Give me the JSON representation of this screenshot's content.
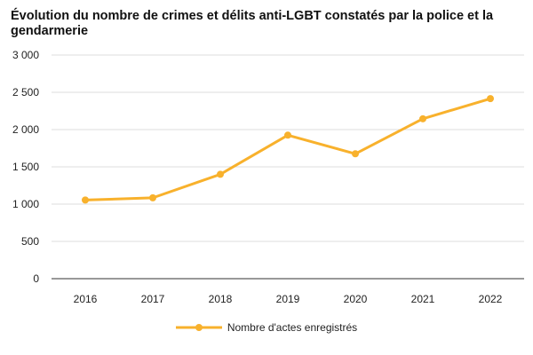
{
  "chart_data": {
    "type": "line",
    "title": "Évolution du nombre de crimes et délits anti-LGBT constatés par la police et la gendarmerie",
    "x": [
      "2016",
      "2017",
      "2018",
      "2019",
      "2020",
      "2021",
      "2022"
    ],
    "series": [
      {
        "name": "Nombre d'actes enregistrés",
        "values": [
          1055,
          1085,
          1400,
          1925,
          1675,
          2145,
          2415
        ],
        "color": "#f8b12c"
      }
    ],
    "ylim": [
      0,
      3000
    ],
    "yticks": [
      0,
      500,
      1000,
      1500,
      2000,
      2500,
      3000
    ],
    "ytick_labels": [
      "0",
      "500",
      "1 000",
      "1 500",
      "2 000",
      "2 500",
      "3 000"
    ],
    "grid": true,
    "legend": "bottom"
  }
}
